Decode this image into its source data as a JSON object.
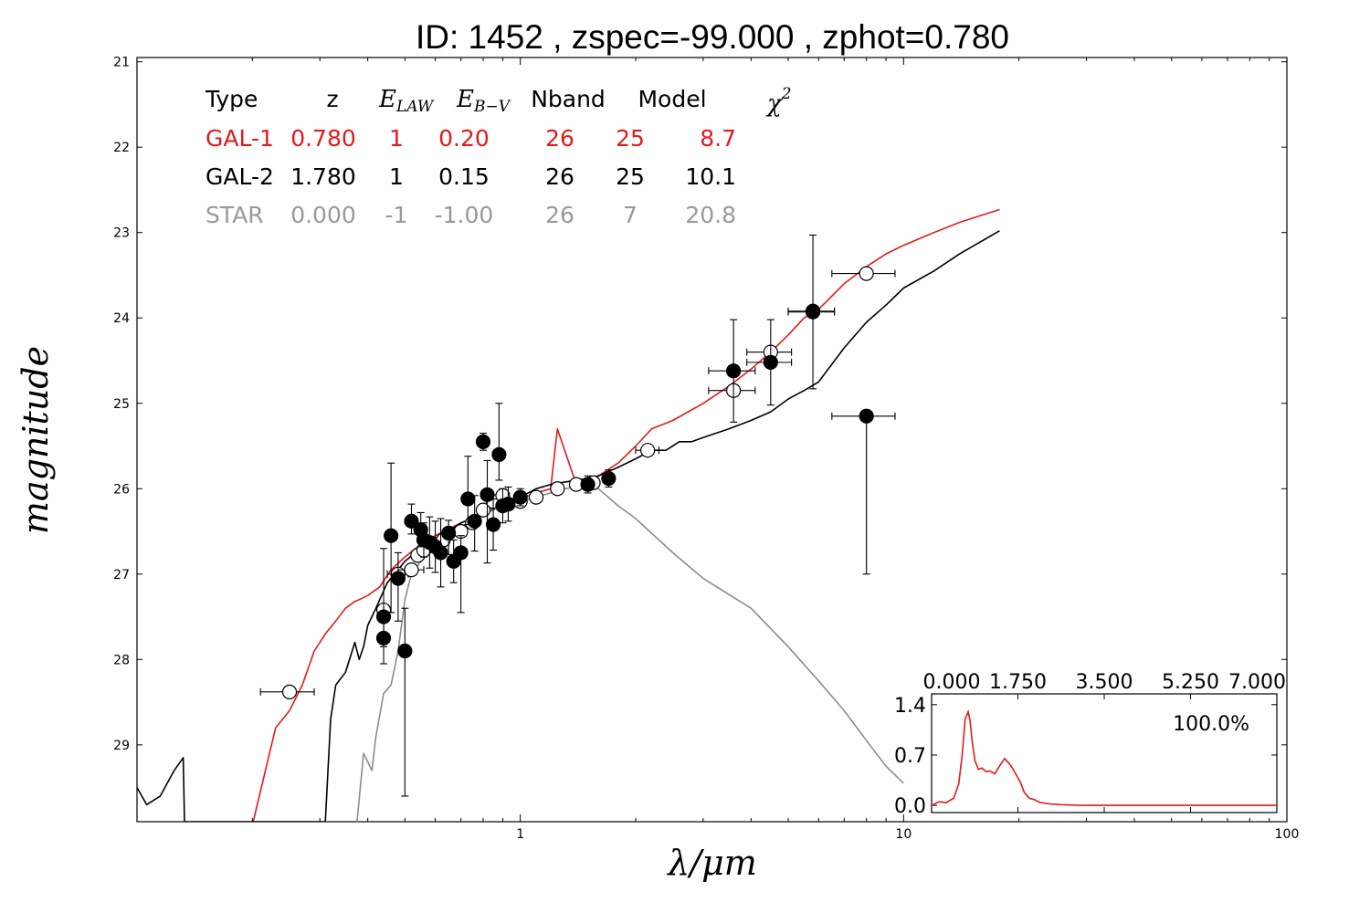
{
  "chart_data": {
    "type": "scatter",
    "title": "ID:  1452  , zspec=-99.000 , zphot=0.780",
    "xlabel": "λ/μm",
    "ylabel": "magnitude",
    "xscale": "log",
    "xlim": [
      0.1,
      100
    ],
    "ylim": [
      29.9,
      20.95
    ],
    "y_inverted": true,
    "x_ticklabels": [
      "1",
      "10",
      "100"
    ],
    "y_ticklabels": [
      "21",
      "22",
      "23",
      "24",
      "25",
      "26",
      "27",
      "28",
      "29"
    ],
    "grid": false,
    "colors": {
      "gal1": "#e31a1c",
      "gal2": "#000000",
      "star": "#8c8c8c"
    },
    "table": {
      "headers": [
        "Type",
        "z",
        "E_LAW",
        "E_B−V",
        "Nband",
        "Model",
        "χ2"
      ],
      "rows": [
        {
          "type": "GAL-1",
          "z": "0.780",
          "elaw": "1",
          "ebv": "0.20",
          "nband": "26",
          "model": "25",
          "chi2": "8.7",
          "color": "#e31a1c"
        },
        {
          "type": "GAL-2",
          "z": "1.780",
          "elaw": "1",
          "ebv": "0.15",
          "nband": "26",
          "model": "25",
          "chi2": "10.1",
          "color": "#000000"
        },
        {
          "type": "STAR",
          "z": "0.000",
          "elaw": "-1",
          "ebv": "-1.00",
          "nband": "26",
          "model": "7",
          "chi2": "20.8",
          "color": "#999999"
        }
      ]
    },
    "series": [
      {
        "kind": "line",
        "color": "#e31a1c",
        "x": [
          0.201,
          0.23,
          0.25,
          0.27,
          0.29,
          0.31,
          0.33,
          0.35,
          0.37,
          0.38,
          0.4,
          0.43,
          0.46,
          0.5,
          0.55,
          0.6,
          0.7,
          0.8,
          0.9,
          1.0,
          1.1,
          1.2,
          1.25,
          1.4,
          1.6,
          1.8,
          2.0,
          2.2,
          2.5,
          3.0,
          3.5,
          4.0,
          4.5,
          5.0,
          5.5,
          6.0,
          7.0,
          8.0,
          9.0,
          10.0,
          12.0,
          14.0,
          17.8
        ],
        "y": [
          29.9,
          28.8,
          28.6,
          28.3,
          27.9,
          27.7,
          27.55,
          27.4,
          27.32,
          27.3,
          27.25,
          27.15,
          26.95,
          26.8,
          26.65,
          26.55,
          26.4,
          26.3,
          26.2,
          26.12,
          26.05,
          26.0,
          25.3,
          25.95,
          25.85,
          25.7,
          25.5,
          25.3,
          25.2,
          25.0,
          24.8,
          24.6,
          24.4,
          24.2,
          24.0,
          23.9,
          23.6,
          23.4,
          23.25,
          23.15,
          23.0,
          22.88,
          22.73
        ]
      },
      {
        "kind": "line",
        "color": "#000000",
        "x": [
          0.1,
          0.106,
          0.115,
          0.125,
          0.132,
          0.133,
          0.134,
          0.135,
          0.31,
          0.32,
          0.33,
          0.35,
          0.37,
          0.38,
          0.39,
          0.4,
          0.42,
          0.45,
          0.48,
          0.5,
          0.55,
          0.6,
          0.7,
          0.8,
          0.9,
          1.0,
          1.1,
          1.2,
          1.4,
          1.5,
          1.6,
          1.8,
          2.0,
          2.2,
          2.4,
          2.6,
          2.8,
          3.0,
          3.5,
          4.0,
          4.5,
          5.0,
          5.5,
          6.0,
          7.0,
          8.0,
          9.0,
          10.0,
          12.0,
          14.0,
          17.8
        ],
        "y": [
          29.5,
          29.7,
          29.6,
          29.3,
          29.15,
          29.9,
          29.9,
          29.9,
          29.9,
          28.7,
          28.3,
          28.15,
          27.8,
          28.0,
          27.85,
          27.6,
          27.4,
          27.1,
          26.95,
          26.85,
          26.7,
          26.6,
          26.4,
          26.3,
          26.18,
          26.1,
          26.0,
          25.95,
          25.9,
          25.88,
          25.85,
          25.75,
          25.65,
          25.55,
          25.55,
          25.45,
          25.45,
          25.4,
          25.3,
          25.2,
          25.1,
          24.95,
          24.85,
          24.75,
          24.35,
          24.05,
          23.85,
          23.65,
          23.45,
          23.25,
          22.98
        ]
      },
      {
        "kind": "line",
        "color": "#8c8c8c",
        "x": [
          0.375,
          0.39,
          0.41,
          0.42,
          0.44,
          0.46,
          0.48,
          0.5,
          0.52,
          0.55,
          0.6,
          0.7,
          0.8,
          0.9,
          1.0,
          1.1,
          1.2,
          1.3,
          1.4,
          1.5,
          1.6,
          1.8,
          2.0,
          2.5,
          3.0,
          4.0,
          5.0,
          6.0,
          7.0,
          8.0,
          9.0,
          10.0
        ],
        "y": [
          29.9,
          29.1,
          29.3,
          28.9,
          28.4,
          28.3,
          27.9,
          27.3,
          27.0,
          26.85,
          26.7,
          26.45,
          26.3,
          26.2,
          26.15,
          26.1,
          26.05,
          26.0,
          25.98,
          25.95,
          26.0,
          26.2,
          26.35,
          26.75,
          27.05,
          27.4,
          27.85,
          28.25,
          28.6,
          28.95,
          29.25,
          29.45
        ]
      },
      {
        "kind": "points",
        "name": "model",
        "fill": "#ffffff",
        "x": [
          0.25,
          0.44,
          0.48,
          0.52,
          0.54,
          0.56,
          0.6,
          0.63,
          0.7,
          0.75,
          0.8,
          0.85,
          0.9,
          1.0,
          1.1,
          1.25,
          1.4,
          1.55,
          2.15,
          3.6,
          4.5,
          5.8,
          8.0
        ],
        "y": [
          28.38,
          27.42,
          27.0,
          26.95,
          26.78,
          26.72,
          26.65,
          26.6,
          26.5,
          26.4,
          26.25,
          26.15,
          26.08,
          26.15,
          26.1,
          26.0,
          25.95,
          25.93,
          25.55,
          24.85,
          24.4,
          23.92,
          23.48
        ],
        "xerr_lo": [
          0.04,
          0,
          0.03,
          0.04,
          0,
          0,
          0,
          0,
          0,
          0,
          0,
          0,
          0,
          0,
          0,
          0,
          0,
          0,
          0.15,
          0.5,
          0.6,
          0.8,
          1.5
        ],
        "xerr_hi": [
          0.04,
          0,
          0.03,
          0.04,
          0,
          0,
          0,
          0,
          0,
          0,
          0,
          0,
          0,
          0,
          0,
          0,
          0,
          0,
          0.15,
          0.5,
          0.6,
          0.8,
          1.5
        ]
      },
      {
        "kind": "points",
        "name": "observed",
        "fill": "#000000",
        "x": [
          0.44,
          0.44,
          0.46,
          0.48,
          0.5,
          0.52,
          0.55,
          0.56,
          0.58,
          0.6,
          0.62,
          0.65,
          0.67,
          0.7,
          0.73,
          0.76,
          0.8,
          0.82,
          0.85,
          0.88,
          0.9,
          0.93,
          1.0,
          1.5,
          1.7,
          3.6,
          4.5,
          5.8,
          8.0
        ],
        "y": [
          27.5,
          27.75,
          26.55,
          27.05,
          27.9,
          26.38,
          26.48,
          26.6,
          26.63,
          26.68,
          26.75,
          26.52,
          26.85,
          26.75,
          26.12,
          26.38,
          25.45,
          26.07,
          26.42,
          25.6,
          26.2,
          26.18,
          26.1,
          25.95,
          25.88,
          24.62,
          24.52,
          23.93,
          25.15
        ],
        "yerr_lo": [
          0.8,
          0.2,
          0.85,
          0.3,
          0.5,
          0.2,
          0.2,
          0.2,
          0.3,
          0.3,
          0.4,
          0.15,
          0.25,
          0.2,
          0.5,
          0.3,
          0.1,
          0.4,
          0.3,
          0.6,
          0.2,
          0.2,
          0.1,
          0.1,
          0.1,
          0.6,
          0.5,
          0.9,
          0
        ],
        "yerr_hi": [
          0.35,
          0.3,
          0.9,
          0.5,
          1.7,
          0.15,
          0.2,
          0.2,
          0.3,
          0.3,
          0.4,
          0.25,
          0.25,
          0.7,
          0.3,
          0.35,
          0.1,
          0.8,
          0.3,
          0.3,
          0.2,
          0.2,
          0.1,
          0.1,
          0.1,
          0.6,
          0.5,
          0.9,
          1.85
        ],
        "xerr_lo": [
          0,
          0,
          0,
          0,
          0,
          0,
          0,
          0,
          0,
          0,
          0,
          0,
          0,
          0,
          0,
          0,
          0,
          0,
          0,
          0,
          0,
          0,
          0,
          0,
          0,
          0.5,
          0.6,
          0.8,
          1.5
        ],
        "xerr_hi": [
          0,
          0,
          0,
          0,
          0,
          0,
          0,
          0,
          0,
          0,
          0,
          0,
          0,
          0,
          0,
          0,
          0,
          0,
          0,
          0,
          0,
          0,
          0,
          0,
          0,
          0.5,
          0.6,
          0.8,
          1.5
        ]
      }
    ],
    "inset": {
      "type": "line",
      "xlim": [
        0.0,
        7.0
      ],
      "ylim": [
        -0.1,
        1.55
      ],
      "x_ticklabels": [
        "0.000",
        "1.750",
        "3.500",
        "5.250",
        "7.000"
      ],
      "y_ticklabels": [
        "1.4",
        "0.7",
        "0.0"
      ],
      "annotation": "100.0%",
      "color": "#e31a1c",
      "x": [
        0.0,
        0.15,
        0.3,
        0.45,
        0.55,
        0.62,
        0.68,
        0.74,
        0.78,
        0.82,
        0.88,
        0.95,
        1.02,
        1.1,
        1.18,
        1.28,
        1.38,
        1.48,
        1.6,
        1.72,
        1.8,
        1.88,
        1.98,
        2.08,
        2.2,
        2.4,
        2.6,
        3.0,
        3.5,
        4.0,
        5.0,
        6.0,
        7.0
      ],
      "y": [
        0.0,
        0.05,
        0.04,
        0.1,
        0.3,
        0.7,
        1.2,
        1.3,
        1.18,
        0.9,
        0.62,
        0.5,
        0.52,
        0.47,
        0.48,
        0.44,
        0.55,
        0.65,
        0.56,
        0.42,
        0.32,
        0.18,
        0.1,
        0.08,
        0.04,
        0.02,
        0.01,
        0.0,
        0.0,
        0.0,
        0.0,
        0.0,
        0.0
      ]
    }
  }
}
